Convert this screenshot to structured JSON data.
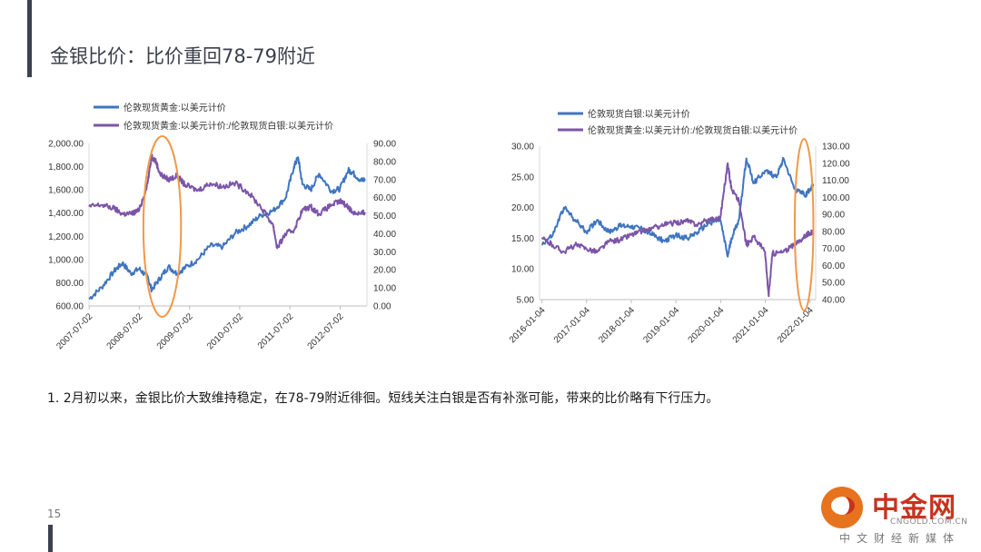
{
  "page": {
    "title": "金银比价：比价重回78-79附近",
    "note": "1. 2月初以来，金银比价大致维持稳定，在78-79附近徘徊。短线关注白银是否有补涨可能，带来的比价略有下行压力。",
    "page_number": "15"
  },
  "logo": {
    "name": "中金网",
    "domain": "CNGOLD.COM.CN",
    "tagline": "中文财经新媒体"
  },
  "colors": {
    "blue": "#3f75c0",
    "purple": "#7c55a8",
    "highlight": "#f0984a"
  },
  "chart_data": [
    {
      "type": "line",
      "title": "",
      "series": [
        {
          "name": "伦敦现货黄金:以美元计价",
          "axis": "left",
          "color": "#3f75c0",
          "x": [
            "2007-07",
            "2007-10",
            "2008-01",
            "2008-03",
            "2008-05",
            "2008-07",
            "2008-09",
            "2008-10",
            "2008-12",
            "2009-02",
            "2009-04",
            "2009-06",
            "2009-09",
            "2009-12",
            "2010-03",
            "2010-06",
            "2010-09",
            "2010-12",
            "2011-03",
            "2011-06",
            "2011-08",
            "2011-09",
            "2011-10",
            "2011-12",
            "2012-02",
            "2012-05",
            "2012-07",
            "2012-09",
            "2012-10",
            "2012-12",
            "2013-01"
          ],
          "values": [
            660,
            760,
            900,
            970,
            880,
            920,
            850,
            740,
            840,
            940,
            880,
            930,
            1000,
            1120,
            1110,
            1230,
            1290,
            1380,
            1420,
            1530,
            1800,
            1880,
            1650,
            1600,
            1740,
            1590,
            1610,
            1770,
            1750,
            1680,
            1690
          ]
        },
        {
          "name": "伦敦现货黄金:以美元计价:/伦敦现货白银:以美元计价",
          "axis": "right",
          "color": "#7c55a8",
          "x": [
            "2007-07",
            "2007-10",
            "2008-01",
            "2008-03",
            "2008-05",
            "2008-07",
            "2008-09",
            "2008-10",
            "2008-11",
            "2008-12",
            "2009-02",
            "2009-04",
            "2009-06",
            "2009-09",
            "2009-12",
            "2010-03",
            "2010-06",
            "2010-09",
            "2010-12",
            "2011-03",
            "2011-04",
            "2011-06",
            "2011-08",
            "2011-10",
            "2011-12",
            "2012-02",
            "2012-05",
            "2012-07",
            "2012-09",
            "2012-10",
            "2012-12",
            "2013-01"
          ],
          "values": [
            55,
            56,
            54,
            51,
            51,
            53,
            68,
            83,
            80,
            73,
            70,
            72,
            67,
            64,
            68,
            66,
            68,
            63,
            55,
            45,
            32,
            40,
            42,
            53,
            55,
            51,
            56,
            58,
            55,
            52,
            51,
            52
          ]
        }
      ],
      "x_ticks": [
        "2007-07-02",
        "2008-07-02",
        "2009-07-02",
        "2010-07-02",
        "2011-07-02",
        "2012-07-02"
      ],
      "y_left": {
        "ticks": [
          "2,000.00",
          "1,800.00",
          "1,600.00",
          "1,400.00",
          "1,200.00",
          "1,000.00",
          "800.00",
          "600.00"
        ],
        "lim": [
          600,
          2000
        ]
      },
      "y_right": {
        "ticks": [
          "90.00",
          "80.00",
          "70.00",
          "60.00",
          "50.00",
          "40.00",
          "30.00",
          "20.00",
          "10.00",
          "0.00"
        ],
        "lim": [
          0,
          90
        ]
      },
      "highlight_range": [
        "2008-08",
        "2009-05"
      ]
    },
    {
      "type": "line",
      "title": "",
      "series": [
        {
          "name": "伦敦现货白银:以美元计价",
          "axis": "left",
          "color": "#3f75c0",
          "x": [
            "2016-01",
            "2016-04",
            "2016-07",
            "2016-10",
            "2017-01",
            "2017-04",
            "2017-07",
            "2017-10",
            "2018-01",
            "2018-04",
            "2018-07",
            "2018-10",
            "2019-01",
            "2019-04",
            "2019-07",
            "2019-10",
            "2020-01",
            "2020-03",
            "2020-04",
            "2020-06",
            "2020-08",
            "2020-10",
            "2021-01",
            "2021-04",
            "2021-06",
            "2021-09",
            "2021-12",
            "2022-01",
            "2022-02"
          ],
          "values": [
            14,
            15.5,
            20,
            18,
            16,
            18,
            16,
            17,
            17,
            16.5,
            15.5,
            14.5,
            15.5,
            15,
            16,
            17.5,
            18,
            12,
            15,
            18,
            28,
            24,
            26,
            25,
            28,
            23,
            22,
            23,
            23.5
          ]
        },
        {
          "name": "伦敦现货黄金:以美元计价:/伦敦现货白银:以美元计价",
          "axis": "right",
          "color": "#7c55a8",
          "x": [
            "2016-01",
            "2016-04",
            "2016-07",
            "2016-10",
            "2017-01",
            "2017-04",
            "2017-07",
            "2017-10",
            "2018-01",
            "2018-04",
            "2018-07",
            "2018-10",
            "2019-01",
            "2019-04",
            "2019-07",
            "2019-10",
            "2020-01",
            "2020-03",
            "2020-04",
            "2020-06",
            "2020-08",
            "2020-10",
            "2021-01",
            "2021-02",
            "2021-03",
            "2021-06",
            "2021-09",
            "2021-12",
            "2022-01",
            "2022-02"
          ],
          "values": [
            76,
            72,
            68,
            72,
            70,
            68,
            74,
            75,
            78,
            80,
            82,
            84,
            85,
            86,
            84,
            87,
            88,
            120,
            105,
            98,
            72,
            77,
            68,
            42,
            67,
            68,
            72,
            78,
            79,
            79
          ]
        }
      ],
      "x_ticks": [
        "2016-01-04",
        "2017-01-04",
        "2018-01-04",
        "2019-01-04",
        "2020-01-04",
        "2021-01-04",
        "2022-01-04"
      ],
      "y_left": {
        "ticks": [
          "30.00",
          "25.00",
          "20.00",
          "15.00",
          "10.00",
          "5.00"
        ],
        "lim": [
          5,
          30
        ]
      },
      "y_right": {
        "ticks": [
          "130.00",
          "120.00",
          "110.00",
          "100.00",
          "90.00",
          "80.00",
          "70.00",
          "60.00",
          "50.00",
          "40.00"
        ],
        "lim": [
          40,
          130
        ]
      },
      "highlight_range": [
        "2021-09",
        "2022-02"
      ]
    }
  ]
}
